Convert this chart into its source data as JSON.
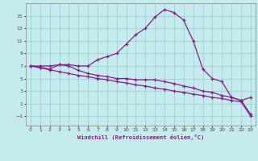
{
  "xlabel": "Windchill (Refroidissement éolien,°C)",
  "xlim": [
    -0.5,
    23.5
  ],
  "ylim": [
    -2.5,
    17
  ],
  "xticks": [
    0,
    1,
    2,
    3,
    4,
    5,
    6,
    7,
    8,
    9,
    10,
    11,
    12,
    13,
    14,
    15,
    16,
    17,
    18,
    19,
    20,
    21,
    22,
    23
  ],
  "yticks": [
    -1,
    1,
    3,
    5,
    7,
    9,
    11,
    13,
    15
  ],
  "bg_color": "#c5eced",
  "grid_color": "#9fcfd4",
  "line_color": "#8b1a8b",
  "line1_x": [
    0,
    1,
    2,
    3,
    4,
    5,
    6,
    7,
    8,
    9,
    10,
    11,
    12,
    13,
    14,
    15,
    16,
    17,
    18,
    19,
    20,
    21,
    22,
    23
  ],
  "line1_y": [
    7.0,
    7.0,
    7.0,
    7.2,
    7.2,
    7.0,
    7.0,
    8.0,
    8.5,
    9.0,
    10.5,
    12.0,
    13.0,
    14.8,
    16.0,
    15.5,
    14.3,
    11.0,
    6.5,
    5.0,
    4.5,
    2.0,
    1.5,
    -0.7
  ],
  "line2_x": [
    0,
    1,
    2,
    3,
    4,
    5,
    6,
    7,
    8,
    9,
    10,
    11,
    12,
    13,
    14,
    15,
    16,
    17,
    18,
    19,
    20,
    21,
    22,
    23
  ],
  "line2_y": [
    7.0,
    6.8,
    6.5,
    7.2,
    7.0,
    6.3,
    5.8,
    5.5,
    5.3,
    5.0,
    5.0,
    4.8,
    4.8,
    4.8,
    4.5,
    4.2,
    3.8,
    3.5,
    3.0,
    2.8,
    2.3,
    2.0,
    1.5,
    2.0
  ],
  "line3_x": [
    0,
    1,
    2,
    3,
    4,
    5,
    6,
    7,
    8,
    9,
    10,
    11,
    12,
    13,
    14,
    15,
    16,
    17,
    18,
    19,
    20,
    21,
    22,
    23
  ],
  "line3_y": [
    7.0,
    6.7,
    6.4,
    6.1,
    5.8,
    5.5,
    5.3,
    5.0,
    4.8,
    4.5,
    4.3,
    4.0,
    3.8,
    3.5,
    3.3,
    3.0,
    2.8,
    2.5,
    2.3,
    2.0,
    1.8,
    1.5,
    1.3,
    -1.0
  ]
}
